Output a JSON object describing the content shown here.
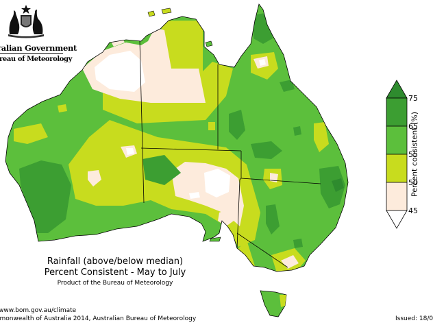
{
  "header": {
    "government_line1": "ralian Government",
    "government_line2": "reau of Meteorology",
    "crest_icon": "coat-of-arms-icon"
  },
  "title": {
    "line1": "Rainfall (above/below median)",
    "line2": "Percent Consistent - May to July",
    "product": "Product of the Bureau of Meteorology"
  },
  "footer": {
    "url": "www.bom.gov.au/climate",
    "copyright": "amonwealth of Australia 2014, Australian Bureau of Meteorology",
    "issued": "Issued: 18/0"
  },
  "legend": {
    "title": "Percent consistent (%)",
    "tick_labels": [
      "75",
      "65",
      "55",
      "50",
      "45"
    ],
    "classes": [
      {
        "range": "above 75",
        "color": "#2e8b2e"
      },
      {
        "range": "65-75",
        "color": "#3c9e32"
      },
      {
        "range": "55-65",
        "color": "#5cbf3c"
      },
      {
        "range": "50-55",
        "color": "#c8dc1e"
      },
      {
        "range": "45-50",
        "color": "#fdebdc"
      },
      {
        "range": "below 45",
        "color": "#ffffff"
      }
    ]
  },
  "colors": {
    "outline": "#000000",
    "background": "#ffffff"
  }
}
